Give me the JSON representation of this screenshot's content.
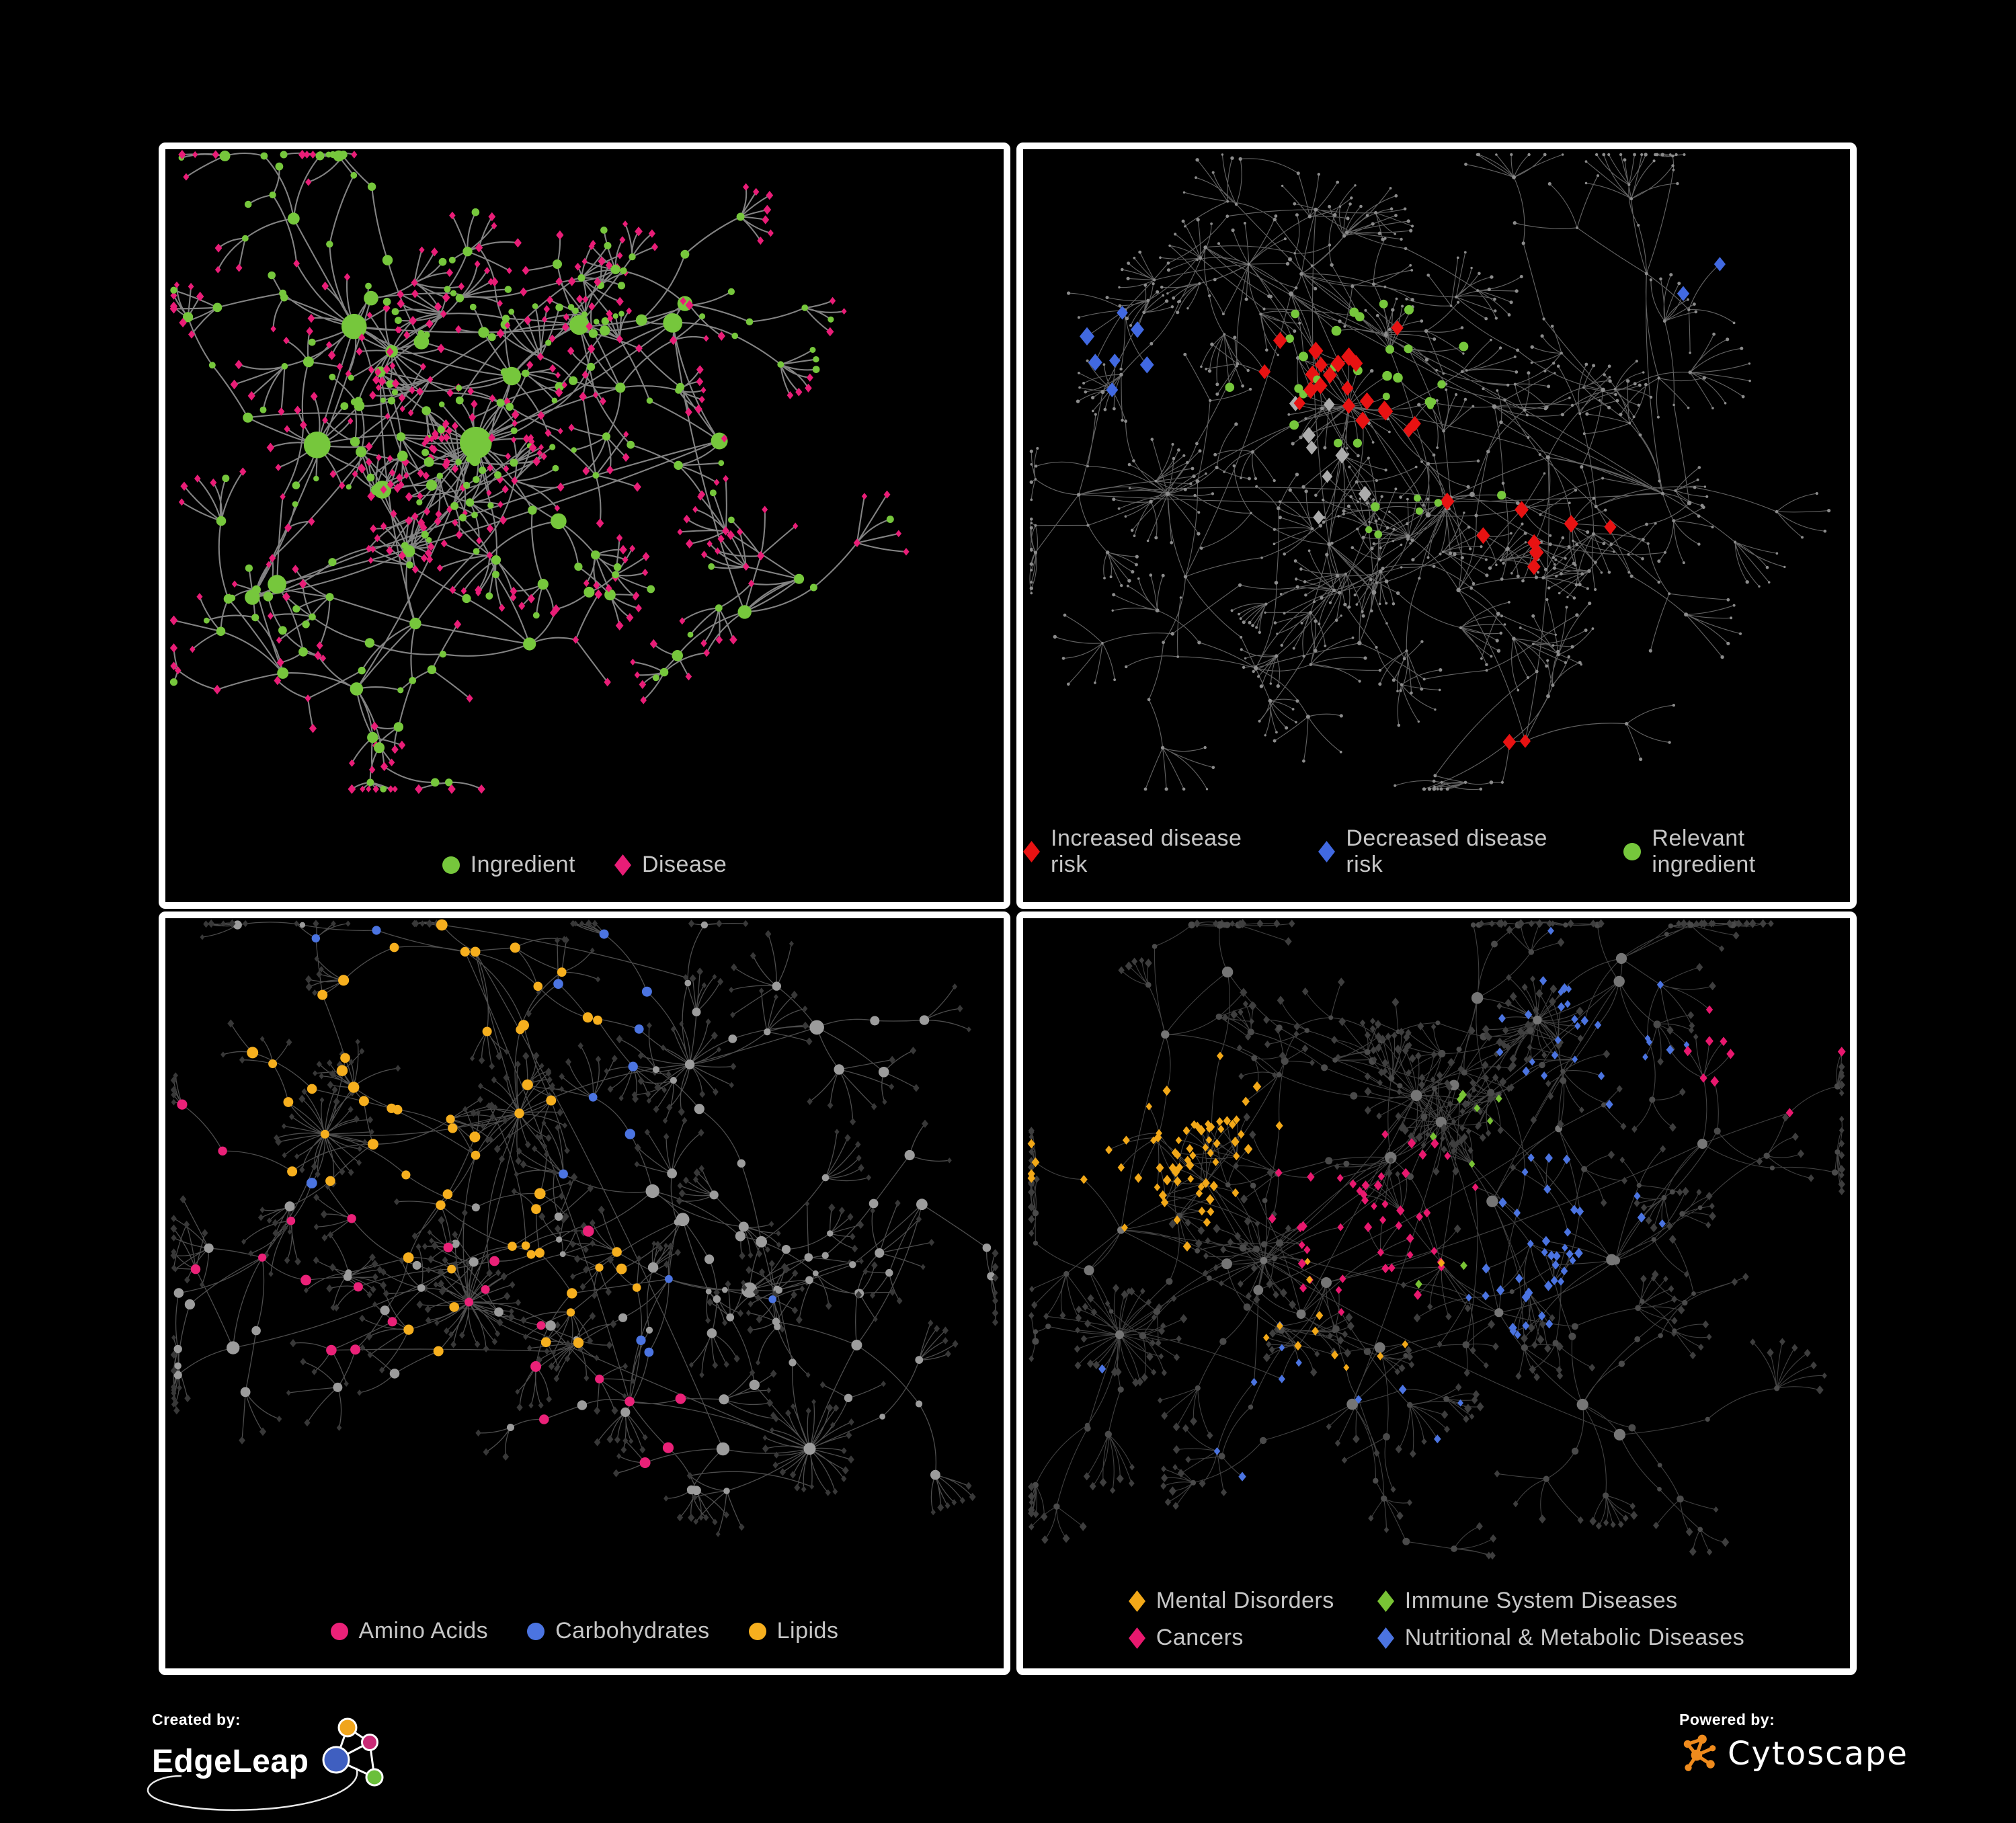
{
  "background": "#000000",
  "panel_border_color": "#ffffff",
  "legend_text_color": "#c6c6c6",
  "panels": [
    {
      "name": "ingredient-disease-network",
      "legend_layout": "row",
      "legend": [
        {
          "shape": "circle",
          "color": "#76c73c",
          "label": "Ingredient"
        },
        {
          "shape": "diamond",
          "color": "#e91d77",
          "label": "Disease"
        }
      ],
      "gen": {
        "seed": 11,
        "hubs": 26,
        "branchMax": 4,
        "step": 88,
        "fanMin": 2,
        "fanVar": 6,
        "leafDist": 48,
        "cross": 0.015,
        "bursts": 4,
        "burstMin": 10,
        "burstVar": 16,
        "megaHubs": 3,
        "edge": {
          "color": "#8a8a8a",
          "width": 2.1,
          "opacity": 0.95
        },
        "base": {
          "hub": {
            "shape": "circle",
            "color": "#76c73c",
            "r": 11,
            "jitter": 0.7
          },
          "mid": {
            "shape": "circle",
            "color": "#76c73c",
            "r": 6.5,
            "jitter": 0.6,
            "alt": {
              "shape": "diamond",
              "color": "#e91d77",
              "r": 6,
              "prob": 0.3
            }
          },
          "leaf": {
            "shape": "diamond",
            "color": "#e91d77",
            "r": 5.8,
            "jitter": 0.4,
            "alt": {
              "shape": "circle",
              "color": "#76c73c",
              "r": 5,
              "prob": 0.18
            }
          }
        },
        "highlights": []
      }
    },
    {
      "name": "disease-risk-network",
      "legend_layout": "row",
      "legend": [
        {
          "shape": "diamond",
          "color": "#e81212",
          "label": "Increased disease risk"
        },
        {
          "shape": "diamond",
          "color": "#4169e1",
          "label": "Decreased disease risk"
        },
        {
          "shape": "circle",
          "color": "#76c73c",
          "label": "Relevant ingredient"
        }
      ],
      "gen": {
        "seed": 47,
        "hubs": 30,
        "branchMax": 5,
        "step": 100,
        "fanMin": 2,
        "fanVar": 7,
        "leafDist": 52,
        "cross": 0.02,
        "bursts": 3,
        "burstMin": 12,
        "burstVar": 18,
        "megaHubs": 0,
        "edge": {
          "color": "#6d6d6d",
          "width": 1.15,
          "opacity": 0.9
        },
        "base": {
          "hub": {
            "shape": "circle",
            "color": "#8c8c8c",
            "r": 3.2,
            "jitter": 0.5
          },
          "mid": {
            "shape": "circle",
            "color": "#8c8c8c",
            "r": 2.4,
            "jitter": 0.5
          },
          "leaf": {
            "shape": "circle",
            "color": "#8c8c8c",
            "r": 2.2,
            "jitter": 0.5
          }
        },
        "highlights": [
          {
            "count": 22,
            "fx": 0.4,
            "fy": 0.36,
            "spread": 0.22,
            "kinds": [
              "hub",
              "mid",
              "leaf"
            ],
            "shape": "diamond",
            "color": "#e81212",
            "r": 12
          },
          {
            "count": 8,
            "fx": 0.6,
            "fy": 0.55,
            "spread": 0.5,
            "kinds": [
              "hub",
              "mid",
              "leaf"
            ],
            "shape": "diamond",
            "color": "#e81212",
            "r": 11.5
          },
          {
            "count": 2,
            "fx": 0.62,
            "fy": 0.85,
            "spread": 0.08,
            "kinds": [
              "hub",
              "mid",
              "leaf"
            ],
            "shape": "diamond",
            "color": "#e81212",
            "r": 11
          },
          {
            "count": 7,
            "fx": 0.13,
            "fy": 0.3,
            "spread": 0.09,
            "kinds": [
              "hub",
              "mid",
              "leaf"
            ],
            "shape": "diamond",
            "color": "#4169e1",
            "r": 11.5
          },
          {
            "count": 2,
            "fx": 0.9,
            "fy": 0.17,
            "spread": 0.05,
            "kinds": [
              "hub",
              "mid",
              "leaf"
            ],
            "shape": "diamond",
            "color": "#4169e1",
            "r": 11
          },
          {
            "count": 8,
            "fx": 0.38,
            "fy": 0.42,
            "spread": 0.45,
            "kinds": [
              "hub",
              "mid",
              "leaf"
            ],
            "shape": "diamond",
            "color": "#acacac",
            "r": 10.5
          },
          {
            "count": 26,
            "fx": 0.4,
            "fy": 0.34,
            "spread": 0.26,
            "kinds": [
              "hub",
              "mid",
              "leaf"
            ],
            "shape": "circle",
            "color": "#76c73c",
            "r": 6.5
          },
          {
            "count": 8,
            "fx": 0.5,
            "fy": 0.5,
            "spread": 0.9,
            "kinds": [
              "hub",
              "mid",
              "leaf"
            ],
            "shape": "circle",
            "color": "#76c73c",
            "r": 6
          }
        ]
      }
    },
    {
      "name": "ingredient-class-network",
      "legend_layout": "row",
      "legend": [
        {
          "shape": "circle",
          "color": "#ea2178",
          "label": "Amino Acids"
        },
        {
          "shape": "circle",
          "color": "#4b74e1",
          "label": "Carbohydrates"
        },
        {
          "shape": "circle",
          "color": "#f6af1e",
          "label": "Lipids"
        }
      ],
      "gen": {
        "seed": 83,
        "hubs": 26,
        "branchMax": 4,
        "step": 92,
        "fanMin": 2,
        "fanVar": 6,
        "leafDist": 46,
        "cross": 0.02,
        "bursts": 5,
        "burstMin": 14,
        "burstVar": 18,
        "megaHubs": 2,
        "edge": {
          "color": "#9a9a9a",
          "width": 1.3,
          "opacity": 0.5
        },
        "base": {
          "hub": {
            "shape": "circle",
            "color": "#9c9c9c",
            "r": 9,
            "jitter": 0.6
          },
          "mid": {
            "shape": "circle",
            "color": "#9c9c9c",
            "r": 6,
            "jitter": 0.6
          },
          "leaf": {
            "shape": "diamond",
            "color": "#383838",
            "r": 5,
            "jitter": 0.4
          }
        },
        "highlights": [
          {
            "count": 42,
            "fx": 0.31,
            "fy": 0.24,
            "spread": 0.12,
            "kinds": [
              "hub",
              "mid"
            ],
            "shape": "circle",
            "color": "#f6af1e",
            "r": 7.5
          },
          {
            "count": 16,
            "fx": 0.45,
            "fy": 0.55,
            "spread": 0.55,
            "kinds": [
              "hub",
              "mid"
            ],
            "shape": "circle",
            "color": "#f6af1e",
            "r": 7
          },
          {
            "count": 11,
            "fx": 0.34,
            "fy": 0.21,
            "spread": 0.09,
            "kinds": [
              "hub",
              "mid"
            ],
            "shape": "circle",
            "color": "#4b74e1",
            "r": 7
          },
          {
            "count": 4,
            "fx": 0.6,
            "fy": 0.6,
            "spread": 0.9,
            "kinds": [
              "hub",
              "mid"
            ],
            "shape": "circle",
            "color": "#4b74e1",
            "r": 6.5
          },
          {
            "count": 18,
            "fx": 0.42,
            "fy": 0.72,
            "spread": 0.5,
            "kinds": [
              "hub",
              "mid"
            ],
            "shape": "circle",
            "color": "#ea2178",
            "r": 7.5
          },
          {
            "count": 6,
            "fx": 0.08,
            "fy": 0.4,
            "spread": 0.35,
            "kinds": [
              "hub",
              "mid"
            ],
            "shape": "circle",
            "color": "#ea2178",
            "r": 7
          }
        ]
      }
    },
    {
      "name": "disease-category-network",
      "legend_layout": "grid",
      "legend": [
        {
          "shape": "diamond",
          "color": "#f2a818",
          "label": "Mental Disorders"
        },
        {
          "shape": "diamond",
          "color": "#79c335",
          "label": "Immune System Diseases"
        },
        {
          "shape": "diamond",
          "color": "#e8186e",
          "label": "Cancers"
        },
        {
          "shape": "diamond",
          "color": "#4b74e1",
          "label": "Nutritional & Metabolic Diseases"
        }
      ],
      "gen": {
        "seed": 139,
        "hubs": 28,
        "branchMax": 5,
        "step": 95,
        "fanMin": 2,
        "fanVar": 7,
        "leafDist": 48,
        "cross": 0.02,
        "bursts": 5,
        "burstMin": 14,
        "burstVar": 20,
        "megaHubs": 0,
        "edge": {
          "color": "#9a9a9a",
          "width": 1.1,
          "opacity": 0.42
        },
        "base": {
          "hub": {
            "shape": "circle",
            "color": "#757575",
            "r": 7,
            "jitter": 0.5
          },
          "mid": {
            "shape": "circle",
            "color": "#4a4a4a",
            "r": 4.5,
            "jitter": 0.5
          },
          "leaf": {
            "shape": "diamond",
            "color": "#3e3e3e",
            "r": 5.5,
            "jitter": 0.4
          }
        },
        "highlights": [
          {
            "count": 70,
            "fx": 0.15,
            "fy": 0.33,
            "spread": 0.1,
            "kinds": [
              "leaf",
              "mid"
            ],
            "shape": "diamond",
            "color": "#f2a818",
            "r": 6.5
          },
          {
            "count": 12,
            "fx": 0.4,
            "fy": 0.6,
            "spread": 0.8,
            "kinds": [
              "leaf",
              "mid"
            ],
            "shape": "diamond",
            "color": "#f2a818",
            "r": 6
          },
          {
            "count": 46,
            "fx": 0.43,
            "fy": 0.46,
            "spread": 0.13,
            "kinds": [
              "leaf",
              "mid"
            ],
            "shape": "diamond",
            "color": "#e8186e",
            "r": 6.5
          },
          {
            "count": 9,
            "fx": 0.88,
            "fy": 0.22,
            "spread": 0.1,
            "kinds": [
              "leaf",
              "mid"
            ],
            "shape": "diamond",
            "color": "#e8186e",
            "r": 6.5
          },
          {
            "count": 40,
            "fx": 0.63,
            "fy": 0.48,
            "spread": 0.11,
            "kinds": [
              "leaf",
              "mid"
            ],
            "shape": "diamond",
            "color": "#4b74e1",
            "r": 6.5
          },
          {
            "count": 28,
            "fx": 0.7,
            "fy": 0.14,
            "spread": 0.22,
            "kinds": [
              "leaf",
              "mid"
            ],
            "shape": "diamond",
            "color": "#4b74e1",
            "r": 6
          },
          {
            "count": 12,
            "fx": 0.3,
            "fy": 0.75,
            "spread": 0.7,
            "kinds": [
              "leaf",
              "mid"
            ],
            "shape": "diamond",
            "color": "#4b74e1",
            "r": 6
          },
          {
            "count": 9,
            "fx": 0.5,
            "fy": 0.45,
            "spread": 0.85,
            "kinds": [
              "leaf",
              "mid"
            ],
            "shape": "diamond",
            "color": "#79c335",
            "r": 6.5
          }
        ]
      }
    }
  ],
  "footer": {
    "created_by": {
      "label": "Created by:",
      "brand": "EdgeLeap",
      "node_colors": [
        "#f0a51d",
        "#c92a76",
        "#3f5fc0",
        "#6abf3a"
      ]
    },
    "powered_by": {
      "label": "Powered by:",
      "brand": "Cytoscape",
      "accent": "#ef8b1d"
    }
  }
}
